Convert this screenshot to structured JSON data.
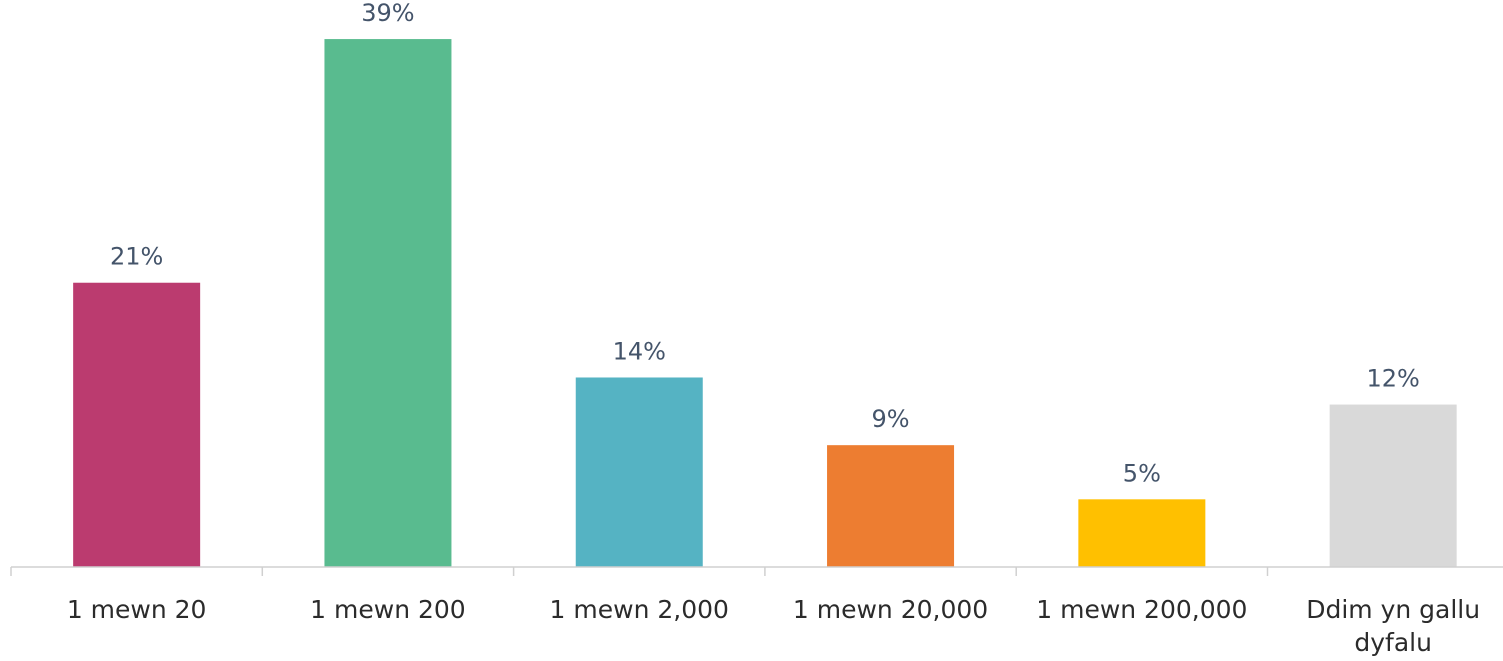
{
  "chart_data": {
    "type": "bar",
    "categories": [
      [
        "1 mewn 20"
      ],
      [
        "1 mewn 200"
      ],
      [
        "1 mewn 2,000"
      ],
      [
        "1 mewn 20,000"
      ],
      [
        "1 mewn 200,000"
      ],
      [
        "Ddim yn gallu",
        "dyfalu"
      ]
    ],
    "values": [
      21,
      39,
      14,
      9,
      5,
      12
    ],
    "value_labels": [
      "21%",
      "39%",
      "14%",
      "9%",
      "5%",
      "12%"
    ],
    "colors": [
      "#BB3B6F",
      "#59BB8F",
      "#55B3C3",
      "#ED7D31",
      "#FFC000",
      "#D9D9D9"
    ],
    "unit": "%",
    "ylim": [
      0,
      41
    ],
    "grid": false,
    "legend": "none",
    "title": "",
    "xlabel": "",
    "ylabel": ""
  }
}
